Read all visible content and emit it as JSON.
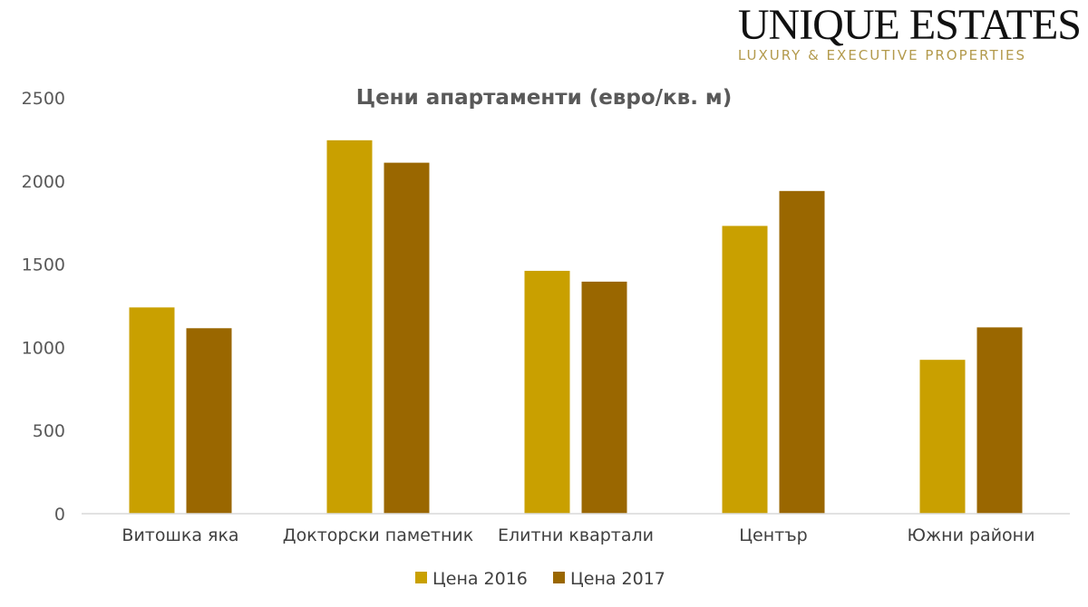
{
  "brand": {
    "name": "UNIQUE ESTATES",
    "tagline": "LUXURY & EXECUTIVE PROPERTIES"
  },
  "chart_data": {
    "type": "bar",
    "title": "Цени апартаменти (евро/кв. м)",
    "xlabel": "",
    "ylabel": "",
    "ylim": [
      0,
      2500
    ],
    "yticks": [
      0,
      500,
      1000,
      1500,
      2000,
      2500
    ],
    "grid": false,
    "legend_position": "bottom",
    "categories": [
      "Витошка яка",
      "Докторски паметник",
      "Елитни квартали",
      "Център",
      "Южни райони"
    ],
    "series": [
      {
        "name": "Цена 2016",
        "color": "#c9a000",
        "values": [
          1240,
          2245,
          1460,
          1730,
          925
        ]
      },
      {
        "name": "Цена 2017",
        "color": "#9a6700",
        "values": [
          1115,
          2110,
          1395,
          1940,
          1120
        ]
      }
    ]
  }
}
